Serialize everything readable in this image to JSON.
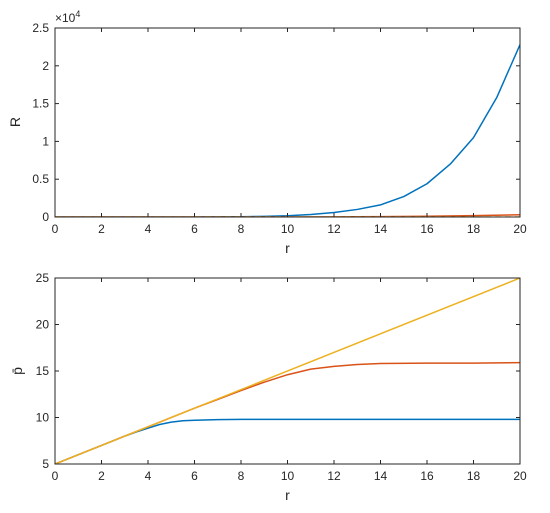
{
  "chart_data": [
    {
      "type": "line",
      "xlabel": "r",
      "ylabel": "R",
      "xlim": [
        0,
        20
      ],
      "ylim": [
        0,
        25000
      ],
      "x_ticks": [
        "0",
        "2",
        "4",
        "6",
        "8",
        "10",
        "12",
        "14",
        "16",
        "18",
        "20"
      ],
      "y_ticks": [
        "0",
        "0.5",
        "1",
        "1.5",
        "2",
        "2.5"
      ],
      "exponent_label": "×10",
      "exponent_power": "4",
      "grid": false,
      "series": [
        {
          "color": "#0072BD",
          "style": "solid",
          "x": [
            0,
            2,
            4,
            6,
            8,
            9,
            10,
            11,
            12,
            13,
            14,
            15,
            16,
            17,
            18,
            19,
            20
          ],
          "y": [
            0,
            0,
            0,
            5,
            40,
            80,
            160,
            330,
            600,
            1000,
            1600,
            2700,
            4400,
            7000,
            10500,
            15800,
            22800
          ]
        },
        {
          "color": "#D95319",
          "style": "solid",
          "x": [
            0,
            4,
            8,
            10,
            12,
            14,
            16,
            18,
            20
          ],
          "y": [
            0,
            0,
            0,
            5,
            20,
            50,
            100,
            180,
            300
          ]
        },
        {
          "color": "#EDB120",
          "style": "dashed",
          "x": [
            0,
            20
          ],
          "y": [
            0,
            0
          ]
        }
      ]
    },
    {
      "type": "line",
      "xlabel": "r",
      "ylabel": "p̄",
      "xlim": [
        0,
        20
      ],
      "ylim": [
        5,
        25
      ],
      "x_ticks": [
        "0",
        "2",
        "4",
        "6",
        "8",
        "10",
        "12",
        "14",
        "16",
        "18",
        "20"
      ],
      "y_ticks": [
        "5",
        "10",
        "15",
        "20",
        "25"
      ],
      "grid": false,
      "series": [
        {
          "color": "#0072BD",
          "style": "solid",
          "x": [
            0,
            1,
            2,
            3,
            3.5,
            4,
            4.5,
            5,
            5.5,
            6,
            7,
            8,
            10,
            14,
            20
          ],
          "y": [
            5,
            6,
            7,
            8,
            8.45,
            8.85,
            9.25,
            9.5,
            9.65,
            9.7,
            9.77,
            9.8,
            9.8,
            9.8,
            9.8
          ]
        },
        {
          "color": "#D95319",
          "style": "solid",
          "x": [
            0,
            2,
            4,
            6,
            7,
            8,
            9,
            10,
            11,
            12,
            13,
            14,
            16,
            18,
            20
          ],
          "y": [
            5,
            7,
            9,
            11,
            11.95,
            12.9,
            13.8,
            14.6,
            15.2,
            15.5,
            15.7,
            15.8,
            15.85,
            15.85,
            15.9
          ]
        },
        {
          "color": "#EDB120",
          "style": "solid",
          "x": [
            0,
            20
          ],
          "y": [
            5,
            25
          ]
        }
      ]
    }
  ]
}
